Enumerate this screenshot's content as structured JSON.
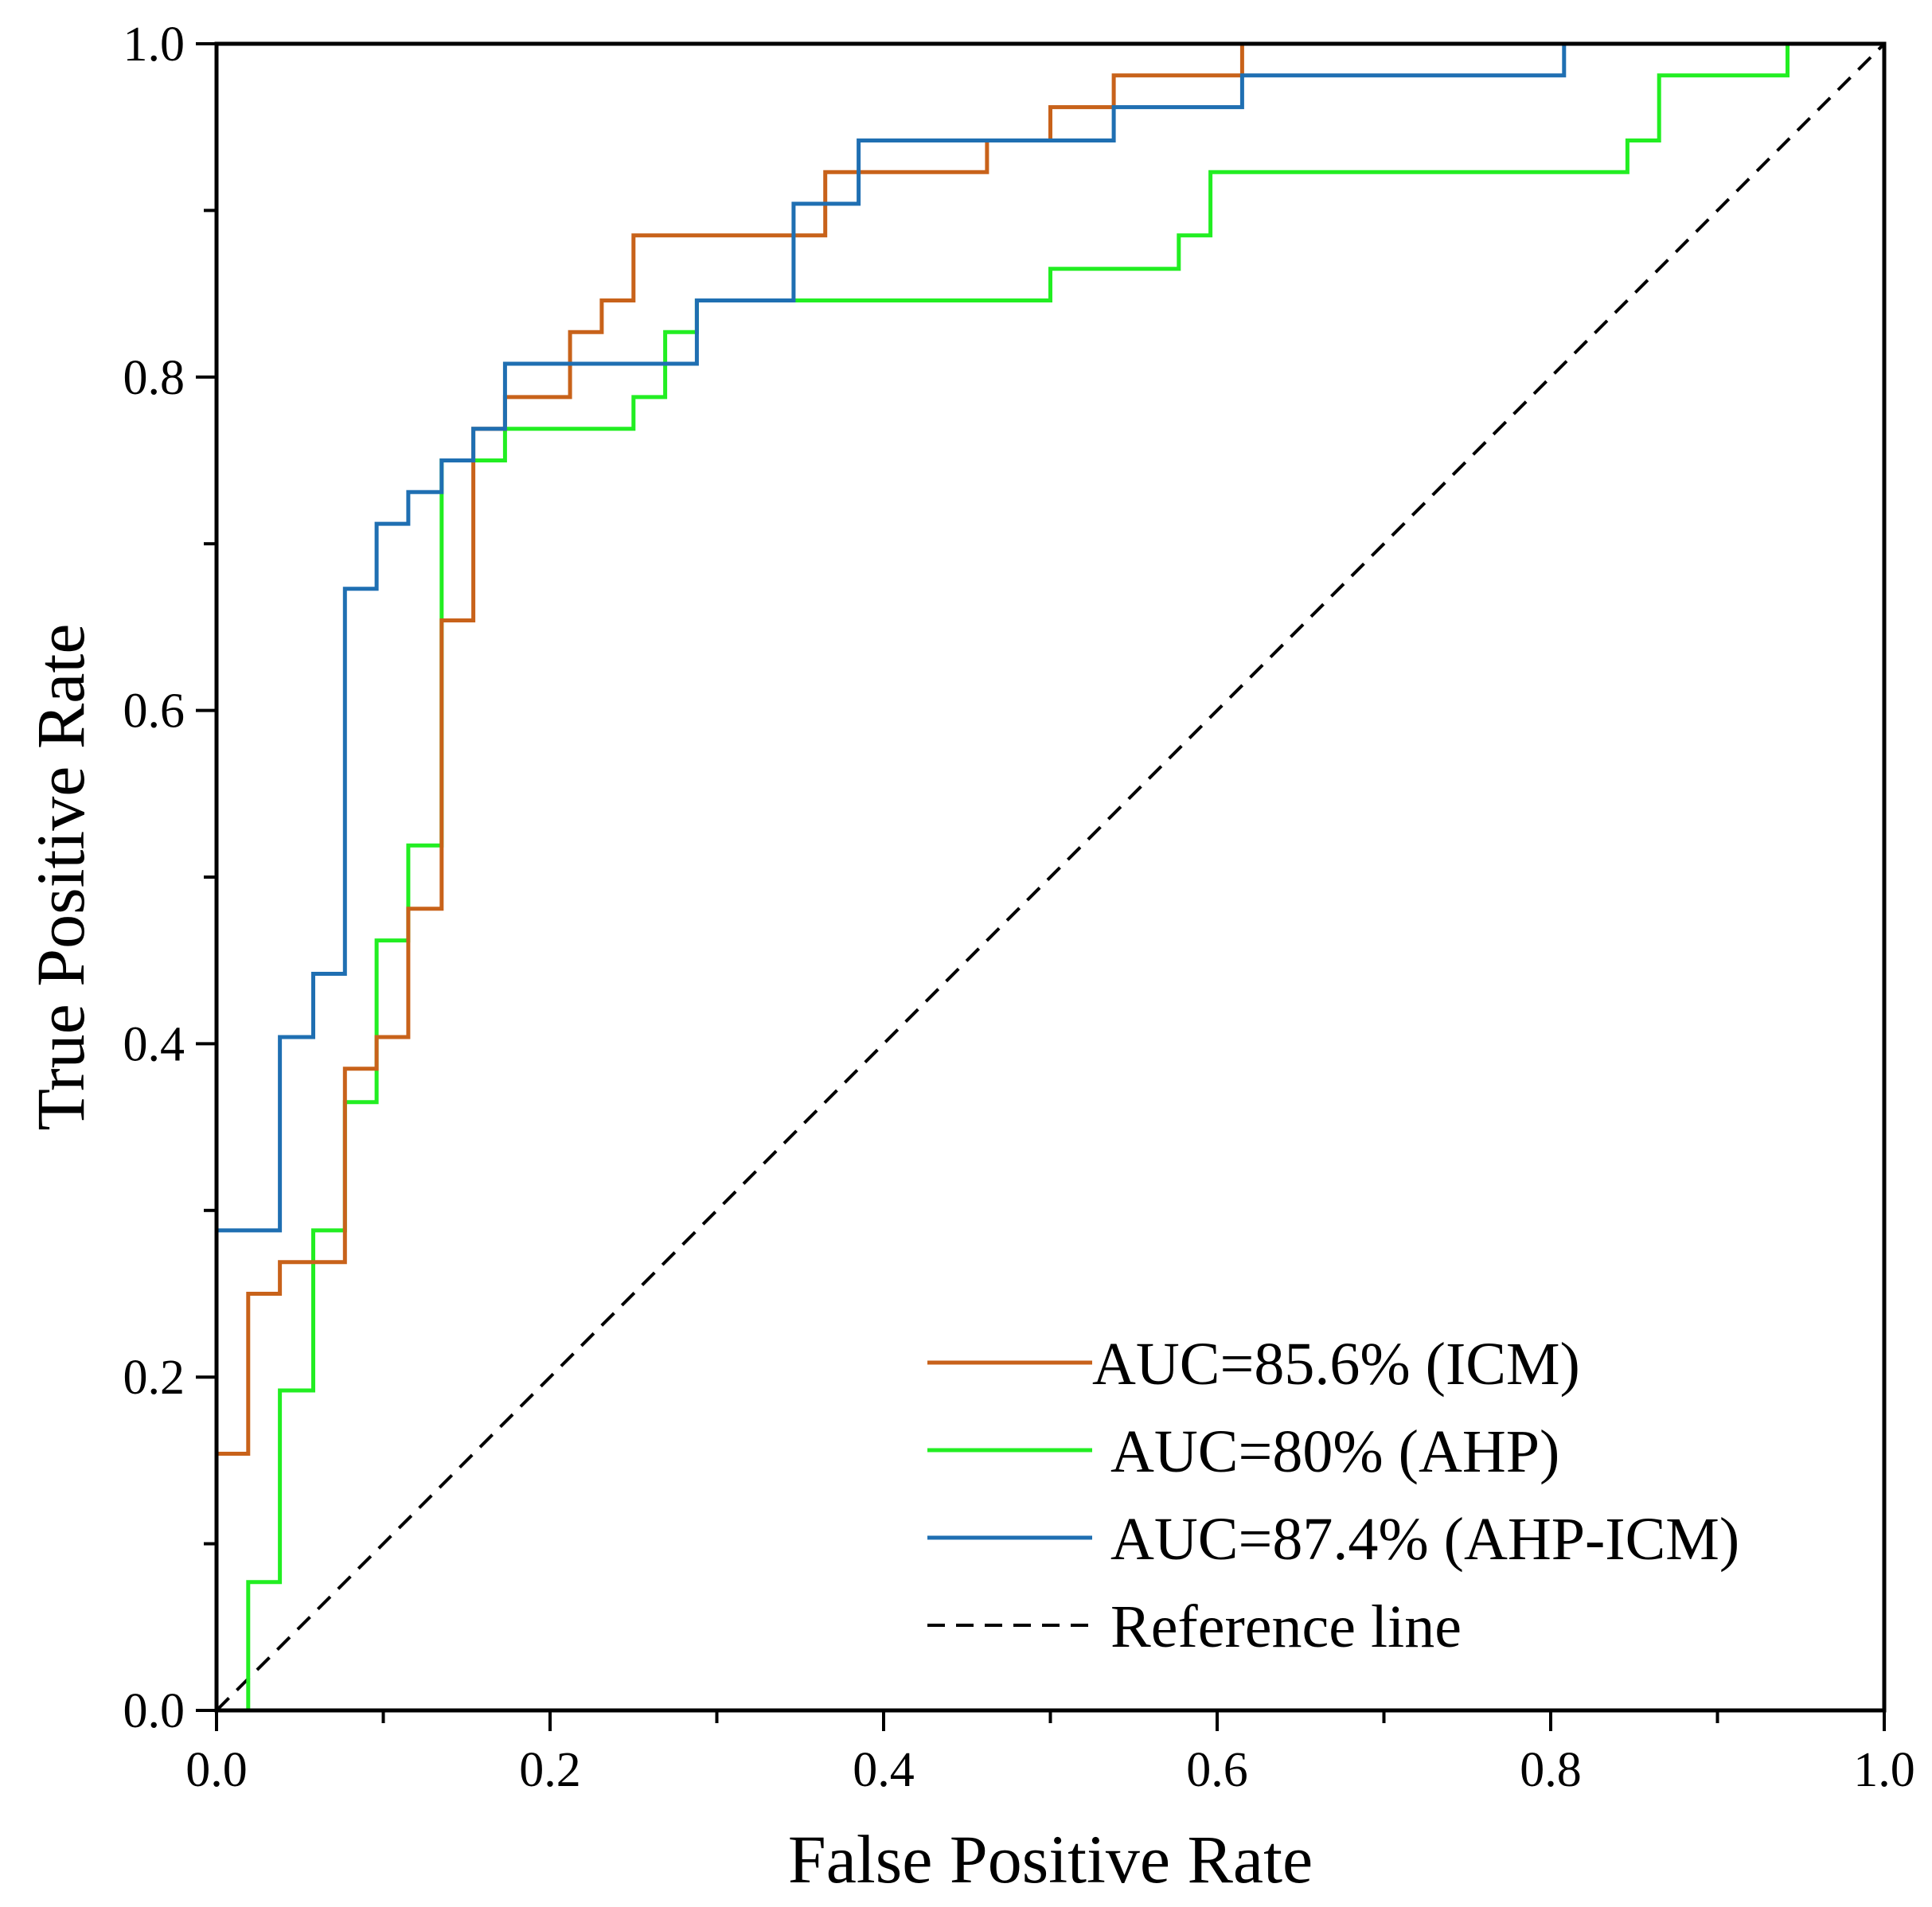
{
  "chart_data": {
    "type": "line",
    "subtype": "roc-step",
    "title": "",
    "xlabel": "False Positive Rate",
    "ylabel": "True Positive Rate",
    "xlim": [
      0,
      1
    ],
    "ylim": [
      0,
      1
    ],
    "grid": false,
    "legend_position": "bottom-right",
    "x_ticks": [
      "0.0",
      "0.2",
      "0.4",
      "0.6",
      "0.8",
      "1.0"
    ],
    "y_ticks": [
      "0.0",
      "0.2",
      "0.4",
      "0.6",
      "0.8",
      "1.0"
    ],
    "series": [
      {
        "name": "AUC=85.6% (ICM)",
        "color": "#C8621A",
        "style": "solid",
        "points": [
          [
            0,
            0
          ],
          [
            0,
            0.154
          ],
          [
            0.019,
            0.154
          ],
          [
            0.019,
            0.25
          ],
          [
            0.038,
            0.25
          ],
          [
            0.038,
            0.269
          ],
          [
            0.077,
            0.269
          ],
          [
            0.077,
            0.385
          ],
          [
            0.096,
            0.385
          ],
          [
            0.096,
            0.404
          ],
          [
            0.115,
            0.404
          ],
          [
            0.115,
            0.481
          ],
          [
            0.135,
            0.481
          ],
          [
            0.135,
            0.654
          ],
          [
            0.154,
            0.654
          ],
          [
            0.154,
            0.769
          ],
          [
            0.173,
            0.769
          ],
          [
            0.173,
            0.788
          ],
          [
            0.212,
            0.788
          ],
          [
            0.212,
            0.827
          ],
          [
            0.231,
            0.827
          ],
          [
            0.231,
            0.846
          ],
          [
            0.25,
            0.846
          ],
          [
            0.25,
            0.885
          ],
          [
            0.365,
            0.885
          ],
          [
            0.365,
            0.923
          ],
          [
            0.462,
            0.923
          ],
          [
            0.462,
            0.942
          ],
          [
            0.5,
            0.942
          ],
          [
            0.5,
            0.962
          ],
          [
            0.538,
            0.962
          ],
          [
            0.538,
            0.981
          ],
          [
            0.615,
            0.981
          ],
          [
            0.615,
            1.0
          ],
          [
            1.0,
            1.0
          ]
        ]
      },
      {
        "name": "AUC=80% (AHP)",
        "color": "#22EE22",
        "style": "solid",
        "points": [
          [
            0,
            0
          ],
          [
            0.019,
            0
          ],
          [
            0.019,
            0.077
          ],
          [
            0.038,
            0.077
          ],
          [
            0.038,
            0.192
          ],
          [
            0.058,
            0.192
          ],
          [
            0.058,
            0.288
          ],
          [
            0.077,
            0.288
          ],
          [
            0.077,
            0.365
          ],
          [
            0.096,
            0.365
          ],
          [
            0.096,
            0.462
          ],
          [
            0.115,
            0.462
          ],
          [
            0.115,
            0.519
          ],
          [
            0.135,
            0.519
          ],
          [
            0.135,
            0.75
          ],
          [
            0.173,
            0.75
          ],
          [
            0.173,
            0.769
          ],
          [
            0.25,
            0.769
          ],
          [
            0.25,
            0.788
          ],
          [
            0.269,
            0.788
          ],
          [
            0.269,
            0.827
          ],
          [
            0.288,
            0.827
          ],
          [
            0.288,
            0.846
          ],
          [
            0.5,
            0.846
          ],
          [
            0.5,
            0.865
          ],
          [
            0.577,
            0.865
          ],
          [
            0.577,
            0.885
          ],
          [
            0.596,
            0.885
          ],
          [
            0.596,
            0.923
          ],
          [
            0.846,
            0.923
          ],
          [
            0.846,
            0.942
          ],
          [
            0.865,
            0.942
          ],
          [
            0.865,
            0.981
          ],
          [
            0.942,
            0.981
          ],
          [
            0.942,
            1.0
          ],
          [
            1.0,
            1.0
          ]
        ]
      },
      {
        "name": "AUC=87.4% (AHP-ICM)",
        "color": "#1F6FB2",
        "style": "solid",
        "points": [
          [
            0,
            0
          ],
          [
            0,
            0.288
          ],
          [
            0.038,
            0.288
          ],
          [
            0.038,
            0.404
          ],
          [
            0.058,
            0.404
          ],
          [
            0.058,
            0.442
          ],
          [
            0.077,
            0.442
          ],
          [
            0.077,
            0.673
          ],
          [
            0.096,
            0.673
          ],
          [
            0.096,
            0.712
          ],
          [
            0.115,
            0.712
          ],
          [
            0.115,
            0.731
          ],
          [
            0.135,
            0.731
          ],
          [
            0.135,
            0.75
          ],
          [
            0.154,
            0.75
          ],
          [
            0.154,
            0.769
          ],
          [
            0.173,
            0.769
          ],
          [
            0.173,
            0.808
          ],
          [
            0.288,
            0.808
          ],
          [
            0.288,
            0.846
          ],
          [
            0.346,
            0.846
          ],
          [
            0.346,
            0.904
          ],
          [
            0.385,
            0.904
          ],
          [
            0.385,
            0.942
          ],
          [
            0.538,
            0.942
          ],
          [
            0.538,
            0.962
          ],
          [
            0.615,
            0.962
          ],
          [
            0.615,
            0.981
          ],
          [
            0.808,
            0.981
          ],
          [
            0.808,
            1.0
          ],
          [
            1.0,
            1.0
          ]
        ]
      },
      {
        "name": "Reference line",
        "color": "#000000",
        "style": "dashed",
        "points": [
          [
            0,
            0
          ],
          [
            1,
            1
          ]
        ]
      }
    ]
  }
}
